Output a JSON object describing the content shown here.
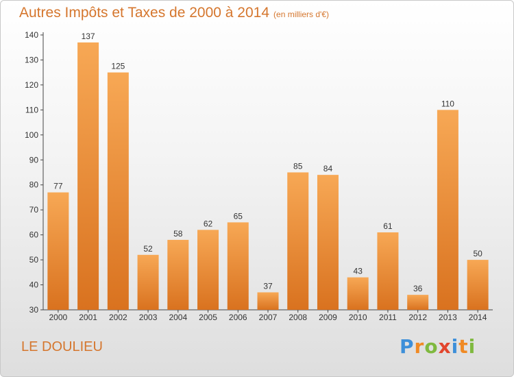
{
  "header": {
    "title": "Autres Impôts et Taxes de 2000 à 2014",
    "unit": "(en milliers d'€)"
  },
  "footer": {
    "commune": "LE DOULIEU",
    "logo": "Proxiti"
  },
  "colors": {
    "title": "#d5762d",
    "bar_light": "#f7a855",
    "bar_dark": "#d9721f",
    "logo_letters": [
      "#3d8fd9",
      "#f08a24",
      "#7fb93f",
      "#e2452d",
      "#3d8fd9",
      "#f08a24",
      "#7fb93f"
    ]
  },
  "chart_data": {
    "type": "bar",
    "title": "Autres Impôts et Taxes de 2000 à 2014",
    "subtitle": "(en milliers d'€)",
    "categories": [
      "2000",
      "2001",
      "2002",
      "2003",
      "2004",
      "2005",
      "2006",
      "2007",
      "2008",
      "2009",
      "2010",
      "2011",
      "2012",
      "2013",
      "2014"
    ],
    "values": [
      77,
      137,
      125,
      52,
      58,
      62,
      65,
      37,
      85,
      84,
      43,
      61,
      36,
      110,
      50
    ],
    "ylim": [
      30,
      140
    ],
    "yticks": [
      30,
      40,
      50,
      60,
      70,
      80,
      90,
      100,
      110,
      120,
      130,
      140
    ],
    "grid": false,
    "legend": "none"
  }
}
